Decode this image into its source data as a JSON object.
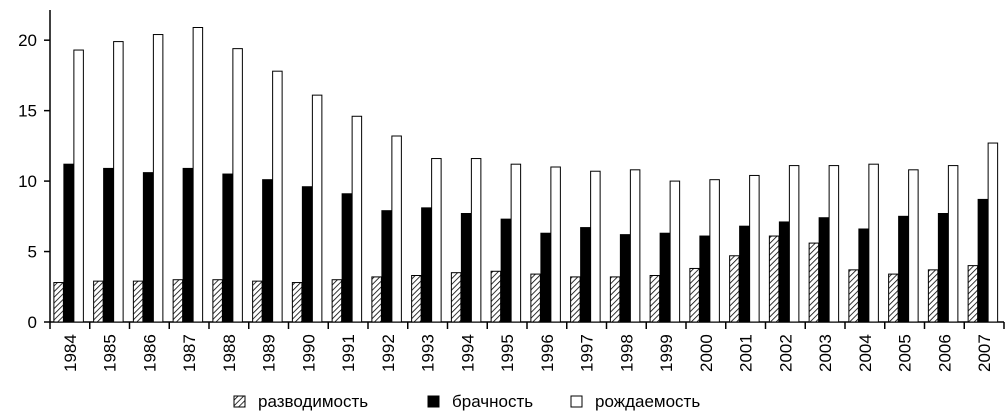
{
  "chart_data": {
    "type": "bar",
    "categories": [
      "1984",
      "1985",
      "1986",
      "1987",
      "1988",
      "1989",
      "1990",
      "1991",
      "1992",
      "1993",
      "1994",
      "1995",
      "1996",
      "1997",
      "1998",
      "1999",
      "2000",
      "2001",
      "2002",
      "2003",
      "2004",
      "2005",
      "2006",
      "2007"
    ],
    "series": [
      {
        "name": "разводимость",
        "pattern": "hatched",
        "values": [
          2.8,
          2.9,
          2.9,
          3.0,
          3.0,
          2.9,
          2.8,
          3.0,
          3.2,
          3.3,
          3.5,
          3.6,
          3.4,
          3.2,
          3.2,
          3.3,
          3.8,
          4.7,
          6.1,
          5.6,
          3.7,
          3.4,
          3.7,
          4.0
        ]
      },
      {
        "name": "брачность",
        "pattern": "solid-black",
        "values": [
          11.2,
          10.9,
          10.6,
          10.9,
          10.5,
          10.1,
          9.6,
          9.1,
          7.9,
          8.1,
          7.7,
          7.3,
          6.3,
          6.7,
          6.2,
          6.3,
          6.1,
          6.8,
          7.1,
          7.4,
          6.6,
          7.5,
          7.7,
          8.7
        ]
      },
      {
        "name": "рождаемость",
        "pattern": "white-outline",
        "values": [
          19.3,
          19.9,
          20.4,
          20.9,
          19.4,
          17.8,
          16.1,
          14.6,
          13.2,
          11.6,
          11.6,
          11.2,
          11.0,
          10.7,
          10.8,
          10.0,
          10.1,
          10.4,
          11.1,
          11.1,
          11.2,
          10.8,
          11.1,
          12.7
        ]
      }
    ],
    "ylim": [
      0,
      22
    ],
    "yticks": [
      0,
      5,
      10,
      15,
      20
    ],
    "xlabel": "",
    "ylabel": "",
    "legend_position": "bottom-center",
    "grid": false
  }
}
